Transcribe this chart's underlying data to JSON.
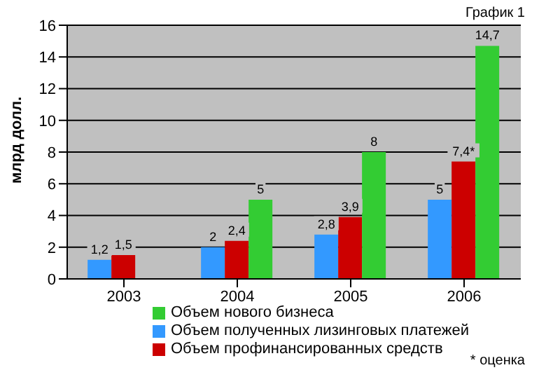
{
  "chart_data": {
    "type": "bar",
    "title": "График 1",
    "ylabel": "млрд долл.",
    "categories": [
      "2003",
      "2004",
      "2005",
      "2006"
    ],
    "series": [
      {
        "name": "Объем полученных лизинговых платежей",
        "color": "#3399ff",
        "values": [
          1.2,
          2,
          2.8,
          5
        ],
        "value_labels": [
          "1,2",
          "2",
          "2,8",
          "5"
        ]
      },
      {
        "name": "Объем профинансированных средств",
        "color": "#cc0000",
        "values": [
          1.5,
          2.4,
          3.9,
          7.4
        ],
        "value_labels": [
          "1,5",
          "2,4",
          "3,9",
          "7,4*"
        ]
      },
      {
        "name": "Объем нового бизнеса",
        "color": "#33cc33",
        "values": [
          null,
          5,
          8,
          14.7
        ],
        "value_labels": [
          null,
          "5",
          "8",
          "14,7"
        ]
      }
    ],
    "ylim": [
      0,
      16
    ],
    "yticks": [
      0,
      2,
      4,
      6,
      8,
      10,
      12,
      14,
      16
    ],
    "grid": "y",
    "legend": "bottom",
    "annotations": [
      "* оценка"
    ]
  }
}
